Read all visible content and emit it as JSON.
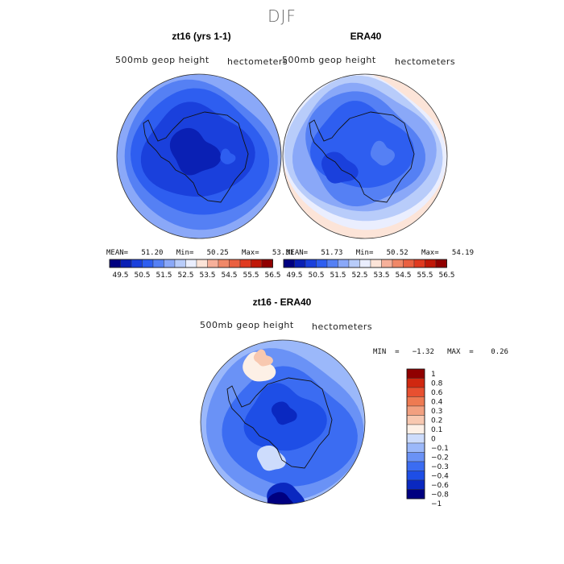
{
  "figure": {
    "title": "DJF"
  },
  "panels": [
    {
      "title": "zt16 (yrs 1-1)",
      "left_label": "500mb  geop  height",
      "right_label": "hectometers",
      "stats": "MEAN=   51.20   Min=   50.25   Max=   53.31"
    },
    {
      "title": "ERA40",
      "left_label": "500mb  geop  height",
      "right_label": "hectometers",
      "stats": "MEAN=   51.73   Min=   50.52   Max=   54.19"
    },
    {
      "title": "zt16 - ERA40",
      "left_label": "500mb  geop  height",
      "right_label": "hectometers",
      "stats": "MIN  =   −1.32   MAX  =    0.26"
    }
  ],
  "colors": {
    "abs_scale": [
      "#000080",
      "#0a20b4",
      "#1a40dc",
      "#2e5ef0",
      "#5580f4",
      "#8aa8f8",
      "#b8ccfa",
      "#eaeefe",
      "#fce4d8",
      "#f6b09a",
      "#f08868",
      "#ea6040",
      "#e03a20",
      "#c01808",
      "#900000"
    ],
    "diff_scale": [
      "#000080",
      "#0a28c0",
      "#1e4ee6",
      "#3b6cf2",
      "#6a92f6",
      "#9bb8fa",
      "#cddcfc",
      "#fdf0e6",
      "#f8c8b0",
      "#f2a080",
      "#ee7a52",
      "#e85030",
      "#d02810",
      "#900000"
    ]
  },
  "chart_data": [
    {
      "type": "heatmap",
      "subtype": "polar-stereographic contour map (Southern Hemisphere)",
      "title": "zt16 (yrs 1-1)",
      "variable": "500mb geop height",
      "units": "hectometers",
      "mean": 51.2,
      "min": 50.25,
      "max": 53.31,
      "colorbar_levels": [
        49.5,
        50.5,
        51.5,
        52.5,
        53.5,
        54.5,
        55.5,
        56.5
      ],
      "colorbar_intervals": 15
    },
    {
      "type": "heatmap",
      "subtype": "polar-stereographic contour map (Southern Hemisphere)",
      "title": "ERA40",
      "variable": "500mb geop height",
      "units": "hectometers",
      "mean": 51.73,
      "min": 50.52,
      "max": 54.19,
      "colorbar_levels": [
        49.5,
        50.5,
        51.5,
        52.5,
        53.5,
        54.5,
        55.5,
        56.5
      ],
      "colorbar_intervals": 15
    },
    {
      "type": "heatmap",
      "subtype": "polar-stereographic difference map (Southern Hemisphere)",
      "title": "zt16 - ERA40",
      "variable": "500mb geop height",
      "units": "hectometers",
      "min": -1.32,
      "max": 0.26,
      "colorbar_levels": [
        1,
        0.8,
        0.6,
        0.4,
        0.3,
        0.2,
        0.1,
        0,
        -0.1,
        -0.2,
        -0.3,
        -0.4,
        -0.6,
        -0.8,
        -1
      ]
    }
  ]
}
